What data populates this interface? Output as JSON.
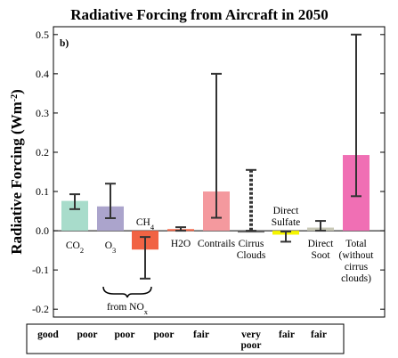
{
  "chart_data": {
    "type": "bar",
    "title": "Radiative Forcing from Aircraft in 2050",
    "panel_label": "b)",
    "ylabel": "Radiative Forcing (Wm-2)",
    "ylim": [
      -0.22,
      0.52
    ],
    "yticks": [
      "-0.2",
      "-0.1",
      "0.0",
      "0.1",
      "0.2",
      "0.3",
      "0.4",
      "0.5"
    ],
    "ytick_values": [
      -0.2,
      -0.1,
      0.0,
      0.1,
      0.2,
      0.3,
      0.4,
      0.5
    ],
    "grid": false,
    "bars": [
      {
        "label": "CO2",
        "value": 0.076,
        "err_low": 0.055,
        "err_high": 0.093,
        "color": "#a8dccb",
        "error_style": "solid"
      },
      {
        "label": "O3",
        "value": 0.062,
        "err_low": 0.032,
        "err_high": 0.12,
        "color": "#aba4cc",
        "error_style": "solid"
      },
      {
        "label": "CH4",
        "value": -0.048,
        "err_low": -0.122,
        "err_high": -0.016,
        "color": "#f16344",
        "error_style": "solid"
      },
      {
        "label": "H2O",
        "value": 0.004,
        "err_low": 0.0,
        "err_high": 0.009,
        "color": "#f16344",
        "error_style": "solid"
      },
      {
        "label": "Contrails",
        "value": 0.1,
        "err_low": 0.033,
        "err_high": 0.4,
        "color": "#f4999e",
        "error_style": "solid"
      },
      {
        "label": "Cirrus Clouds",
        "value": 0.0,
        "err_low": 0.0,
        "err_high": 0.155,
        "color": "#666666",
        "error_style": "dashed"
      },
      {
        "label": "Direct Sulfate",
        "value": -0.01,
        "err_low": -0.028,
        "err_high": -0.002,
        "color": "#f5f500",
        "error_style": "solid"
      },
      {
        "label": "Direct Soot",
        "value": 0.008,
        "err_low": 0.0,
        "err_high": 0.025,
        "color": "#c8c8b6",
        "error_style": "solid"
      },
      {
        "label": "Total (without cirrus clouds)",
        "value": 0.193,
        "err_low": 0.088,
        "err_high": 0.5,
        "color": "#f06fb4",
        "error_style": "solid"
      }
    ],
    "annotation": "from NOx",
    "confidence_levels": [
      "good",
      "poor",
      "poor",
      "poor",
      "fair",
      "very poor",
      "fair",
      "fair"
    ]
  }
}
